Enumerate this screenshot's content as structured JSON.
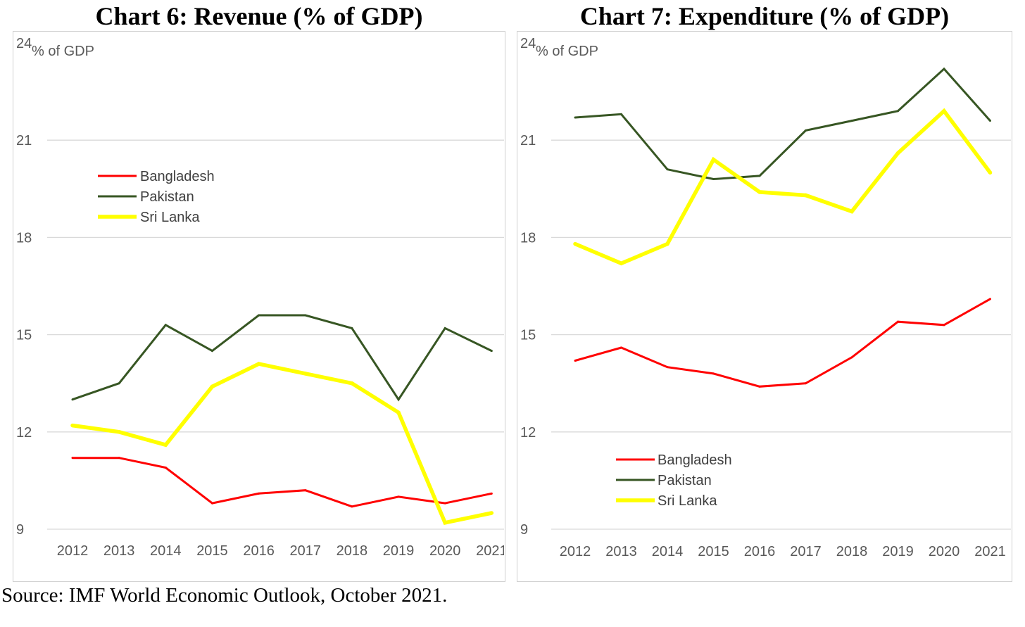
{
  "charts": [
    {
      "title": "Chart 6: Revenue (% of GDP)",
      "unit_label": "% of GDP"
    },
    {
      "title": "Chart 7: Expenditure (% of GDP)",
      "unit_label": "% of GDP"
    }
  ],
  "source": "Source: IMF World Economic Outlook, October 2021.",
  "chart_data": [
    {
      "type": "line",
      "title": "Chart 6: Revenue (% of GDP)",
      "ylabel": "% of GDP",
      "x": [
        "2012",
        "2013",
        "2014",
        "2015",
        "2016",
        "2017",
        "2018",
        "2019",
        "2020",
        "2021"
      ],
      "ylim": [
        9,
        24
      ],
      "yticks": [
        9,
        12,
        15,
        18,
        21,
        24
      ],
      "grid": "horizontal",
      "legend_position": "upper-left",
      "series": [
        {
          "name": "Bangladesh",
          "color": "#ff0000",
          "values": [
            11.2,
            11.2,
            10.9,
            9.8,
            10.1,
            10.2,
            9.7,
            10.0,
            9.8,
            10.1
          ]
        },
        {
          "name": "Pakistan",
          "color": "#375623",
          "values": [
            13.0,
            13.5,
            15.3,
            14.5,
            15.6,
            15.6,
            15.2,
            13.0,
            15.2,
            14.5
          ]
        },
        {
          "name": "Sri Lanka",
          "color": "#ffff00",
          "values": [
            12.2,
            12.0,
            11.6,
            13.4,
            14.1,
            13.8,
            13.5,
            12.6,
            9.2,
            9.5
          ]
        }
      ]
    },
    {
      "type": "line",
      "title": "Chart 7: Expenditure (% of GDP)",
      "ylabel": "% of GDP",
      "x": [
        "2012",
        "2013",
        "2014",
        "2015",
        "2016",
        "2017",
        "2018",
        "2019",
        "2020",
        "2021"
      ],
      "ylim": [
        9,
        24
      ],
      "yticks": [
        9,
        12,
        15,
        18,
        21,
        24
      ],
      "grid": "horizontal",
      "legend_position": "lower-left",
      "series": [
        {
          "name": "Bangladesh",
          "color": "#ff0000",
          "values": [
            14.2,
            14.6,
            14.0,
            13.8,
            13.4,
            13.5,
            14.3,
            15.4,
            15.3,
            16.1
          ]
        },
        {
          "name": "Pakistan",
          "color": "#375623",
          "values": [
            21.7,
            21.8,
            20.1,
            19.8,
            19.9,
            21.3,
            21.6,
            21.9,
            23.2,
            21.6
          ]
        },
        {
          "name": "Sri Lanka",
          "color": "#ffff00",
          "values": [
            17.8,
            17.2,
            17.8,
            20.4,
            19.4,
            19.3,
            18.8,
            20.6,
            21.9,
            20.0
          ]
        }
      ]
    }
  ]
}
